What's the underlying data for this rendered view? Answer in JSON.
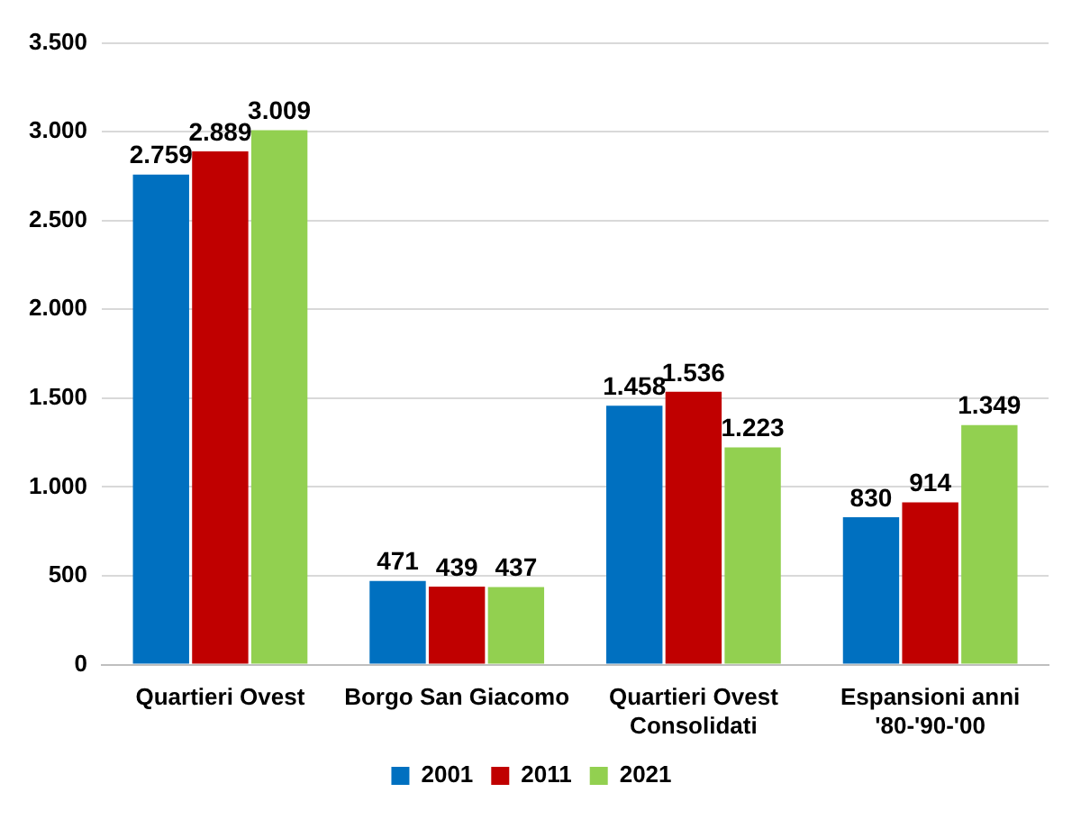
{
  "chart_data": {
    "type": "bar",
    "categories": [
      "Quartieri Ovest",
      "Borgo San Giacomo",
      "Quartieri Ovest Consolidati",
      "Espansioni anni '80-'90-'00"
    ],
    "series": [
      {
        "name": "2001",
        "color": "#0070c0",
        "values": [
          2759,
          471,
          1458,
          830
        ],
        "value_labels": [
          "2.759",
          "471",
          "1.458",
          "830"
        ]
      },
      {
        "name": "2011",
        "color": "#c00000",
        "values": [
          2889,
          439,
          1536,
          914
        ],
        "value_labels": [
          "2.889",
          "439",
          "1.536",
          "914"
        ]
      },
      {
        "name": "2021",
        "color": "#92d050",
        "values": [
          3009,
          437,
          1223,
          1349
        ],
        "value_labels": [
          "3.009",
          "437",
          "1.223",
          "1.349"
        ]
      }
    ],
    "ylim": [
      0,
      3500
    ],
    "yticks": [
      {
        "value": 0,
        "label": "0"
      },
      {
        "value": 500,
        "label": "500"
      },
      {
        "value": 1000,
        "label": "1.000"
      },
      {
        "value": 1500,
        "label": "1.500"
      },
      {
        "value": 2000,
        "label": "2.000"
      },
      {
        "value": 2500,
        "label": "2.500"
      },
      {
        "value": 3000,
        "label": "3.000"
      },
      {
        "value": 3500,
        "label": "3.500"
      }
    ],
    "grid": "y",
    "legend": "bottom"
  }
}
